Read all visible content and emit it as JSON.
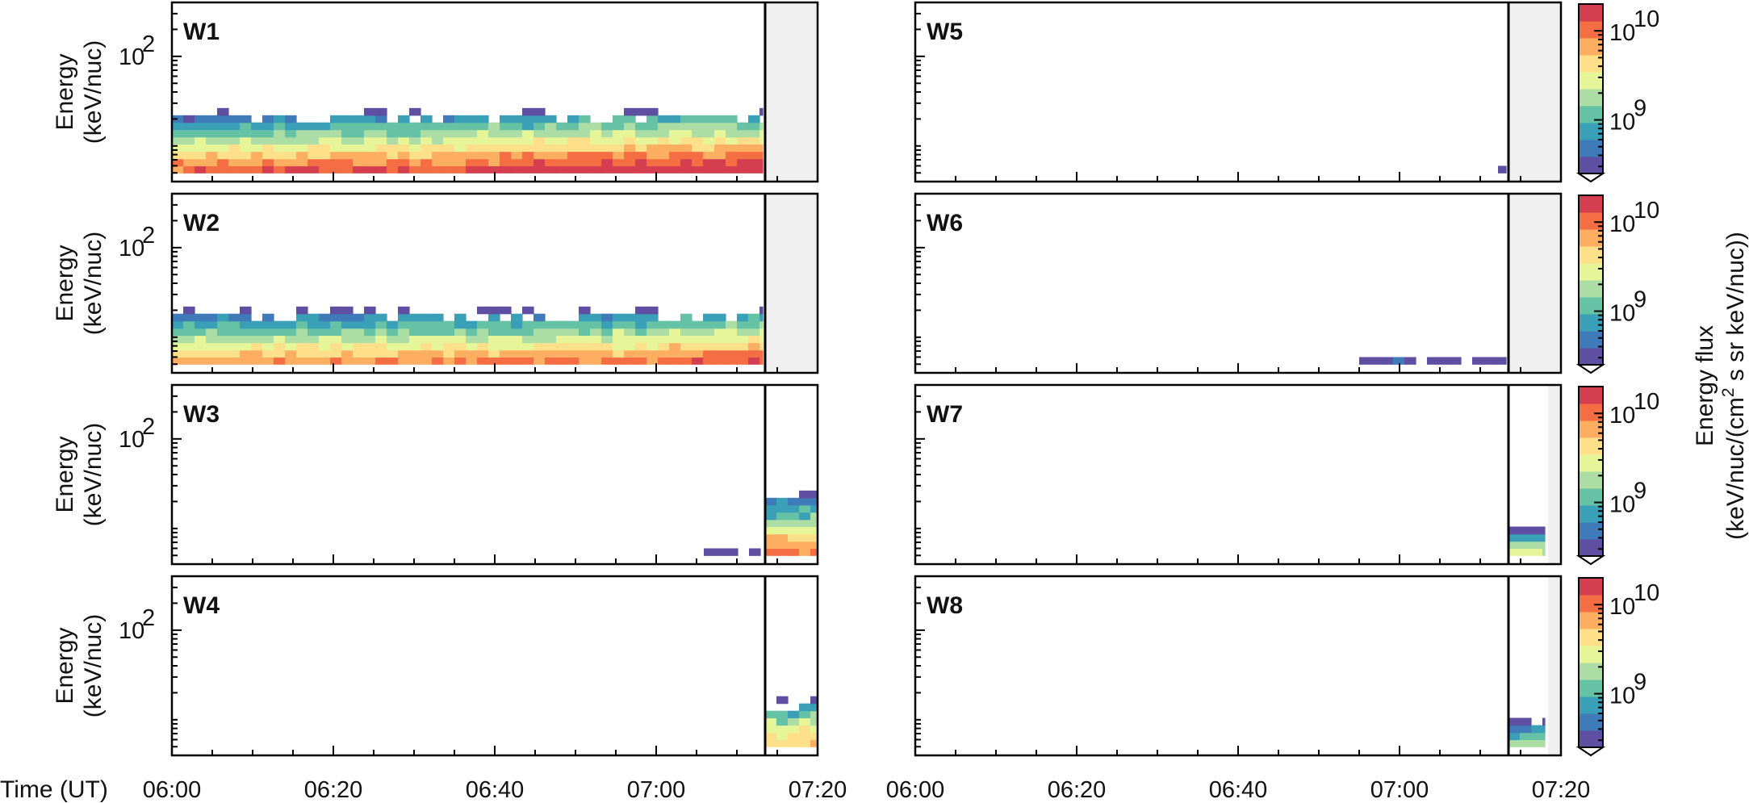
{
  "chart_data": {
    "type": "heatmap",
    "x_tick_labels": [
      "06:00",
      "06:20",
      "06:40",
      "07:00",
      "07:20"
    ],
    "x_tick_minutes": [
      0,
      20,
      40,
      60,
      80
    ],
    "xlim_minutes": [
      0,
      80
    ],
    "x_start": "06:00",
    "xlabel": "Time (UT)",
    "ylabel_line1": "Energy",
    "ylabel_line2": "(keV/nuc)",
    "y_scale": "log",
    "ylim": [
      4,
      400
    ],
    "y_tick_label": "10",
    "y_tick_exponent": "2",
    "y_tick_value": 100,
    "colorbar": {
      "scale": "log",
      "range": [
        250000000,
        20000000000
      ],
      "tick_labels": [
        {
          "base": "10",
          "exp": "10",
          "value": 10000000000
        },
        {
          "base": "10",
          "exp": "9",
          "value": 1000000000
        }
      ],
      "extend": "min",
      "colormap": [
        "#5e4fa2",
        "#3f7bb8",
        "#3aa0b8",
        "#66c2a5",
        "#abdda4",
        "#e6f598",
        "#fee08b",
        "#fdae61",
        "#f46d43",
        "#d53e4f"
      ],
      "label_line1": "Energy flux",
      "label_line2": "(keV/nuc/(cm",
      "label_sup": "2",
      "label_line3": " s sr keV/nuc))"
    },
    "energy_bins_keV": [
      5,
      6,
      7.2,
      8.7,
      10.5,
      12.6,
      15.2,
      18.3,
      22,
      26.5,
      32
    ],
    "bin_width_minutes": 1.4,
    "panels": [
      {
        "name": "W1",
        "column": 0,
        "row": 0,
        "boundary_minutes": 73.5,
        "shade_start_minutes": 73.2,
        "shade_end_minutes": 80,
        "activity": [
          {
            "start": 0,
            "end": 73.2,
            "levels": [
              8,
              7,
              6,
              5,
              4,
              3,
              2,
              1
            ],
            "trend": 1.0
          }
        ]
      },
      {
        "name": "W2",
        "column": 0,
        "row": 1,
        "boundary_minutes": 73.5,
        "shade_start_minutes": 73.2,
        "shade_end_minutes": 80,
        "activity": [
          {
            "start": 0,
            "end": 73.2,
            "levels": [
              7,
              6,
              5,
              4,
              3,
              2,
              1
            ],
            "trend": 0.7
          }
        ]
      },
      {
        "name": "W3",
        "column": 0,
        "row": 2,
        "boundary_minutes": 73.5,
        "shade_start_minutes": 80,
        "shade_end_minutes": 80,
        "activity": [
          {
            "start": 64.5,
            "end": 73.2,
            "levels": [
              0
            ],
            "trend": 0
          },
          {
            "start": 73.5,
            "end": 80,
            "levels": [
              8,
              7,
              6,
              5,
              4,
              3,
              2,
              1,
              0
            ],
            "trend": 0
          }
        ]
      },
      {
        "name": "W4",
        "column": 0,
        "row": 3,
        "boundary_minutes": 73.5,
        "shade_start_minutes": 80,
        "shade_end_minutes": 80,
        "activity": [
          {
            "start": 73.5,
            "end": 80,
            "levels": [
              6,
              6,
              5,
              4,
              3,
              2
            ],
            "trend": 0
          }
        ]
      },
      {
        "name": "W5",
        "column": 1,
        "row": 0,
        "boundary_minutes": 73.5,
        "shade_start_minutes": 73.6,
        "shade_end_minutes": 80,
        "activity": [
          {
            "start": 72.2,
            "end": 73.2,
            "levels": [
              0
            ],
            "trend": 0
          }
        ]
      },
      {
        "name": "W6",
        "column": 1,
        "row": 1,
        "boundary_minutes": 73.5,
        "shade_start_minutes": 73.6,
        "shade_end_minutes": 80,
        "activity": [
          {
            "start": 55.0,
            "end": 73.2,
            "levels": [
              0
            ],
            "trend": 0
          }
        ]
      },
      {
        "name": "W7",
        "column": 1,
        "row": 2,
        "boundary_minutes": 73.5,
        "shade_start_minutes": 78.4,
        "shade_end_minutes": 80,
        "activity": [
          {
            "start": 73.5,
            "end": 78.0,
            "levels": [
              5,
              4,
              2,
              0
            ],
            "trend": 0
          }
        ]
      },
      {
        "name": "W8",
        "column": 1,
        "row": 3,
        "boundary_minutes": 73.5,
        "shade_start_minutes": 78.4,
        "shade_end_minutes": 80,
        "activity": [
          {
            "start": 73.5,
            "end": 78.0,
            "levels": [
              4,
              3,
              1,
              0
            ],
            "trend": 0
          }
        ]
      }
    ]
  }
}
